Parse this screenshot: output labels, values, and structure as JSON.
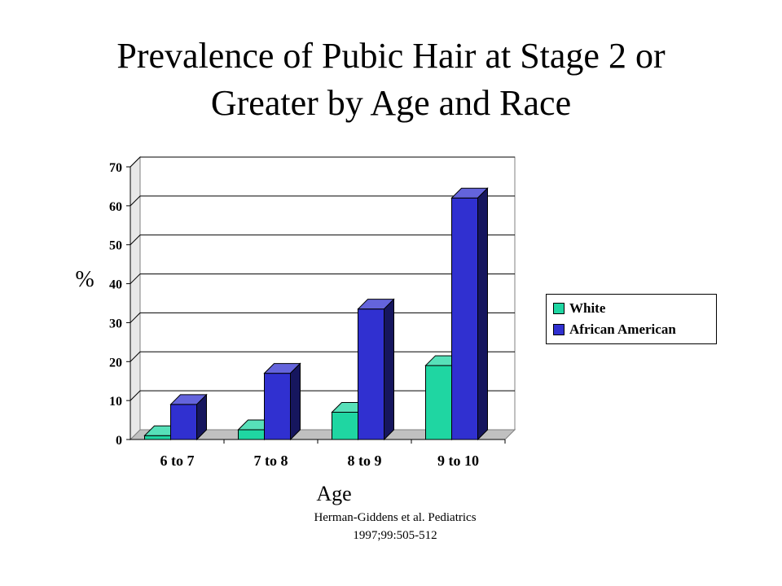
{
  "title_line1": "Prevalence of Pubic Hair at Stage 2 or",
  "title_line2": "Greater by Age and Race",
  "source_line1": "Herman-Giddens et al. Pediatrics",
  "source_line2": "1997;99:505-512",
  "colors": {
    "white": "#1fd6a2",
    "african_american": "#3030d0"
  },
  "chart_data": {
    "type": "bar",
    "title": "Prevalence of Pubic Hair at Stage 2 or Greater by Age and Race",
    "xlabel": "Age",
    "ylabel": "%",
    "ylim": [
      0,
      70
    ],
    "yticks": [
      0,
      10,
      20,
      30,
      40,
      50,
      60,
      70
    ],
    "grid": true,
    "legend": "right",
    "categories": [
      "6 to 7",
      "7 to 8",
      "8 to 9",
      "9 to 10"
    ],
    "series": [
      {
        "name": "White",
        "values": [
          1,
          2.5,
          7,
          19
        ]
      },
      {
        "name": "African American",
        "values": [
          9,
          17,
          33.5,
          62
        ]
      }
    ]
  }
}
